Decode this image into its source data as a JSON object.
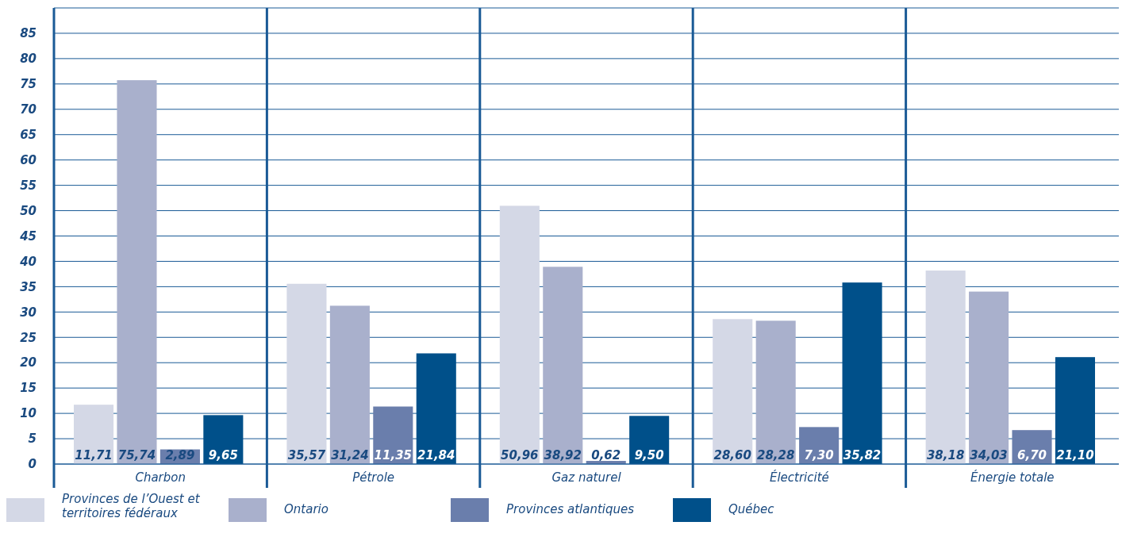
{
  "chart_data": {
    "type": "bar",
    "categories": [
      "Charbon",
      "Pétrole",
      "Gaz naturel",
      "Électricité",
      "Énergie totale"
    ],
    "series": [
      {
        "name": "Provinces de l’Ouest et territoires fédéraux",
        "color": "#d4d8e6",
        "values": [
          11.71,
          35.57,
          50.96,
          28.6,
          38.18
        ],
        "value_labels": [
          "11,71",
          "35,57",
          "50,96",
          "28,60",
          "38,18"
        ]
      },
      {
        "name": "Ontario",
        "color": "#a9b0cc",
        "values": [
          75.74,
          31.24,
          38.92,
          28.28,
          34.03
        ],
        "value_labels": [
          "75,74",
          "31,24",
          "38,92",
          "28,28",
          "34,03"
        ]
      },
      {
        "name": "Provinces atlantiques",
        "color": "#6a7eac",
        "values": [
          2.89,
          11.35,
          0.62,
          7.3,
          6.7
        ],
        "value_labels": [
          "2,89",
          "11,35",
          "0,62",
          "7,30",
          "6,70"
        ]
      },
      {
        "name": "Québec",
        "color": "#00508a",
        "values": [
          9.65,
          21.84,
          9.5,
          35.82,
          21.1
        ],
        "value_labels": [
          "9,65",
          "21,84",
          "9,50",
          "35,82",
          "21,10"
        ]
      }
    ],
    "ylim": [
      0,
      90
    ],
    "yticks": [
      0,
      5,
      10,
      15,
      20,
      25,
      30,
      35,
      40,
      45,
      50,
      55,
      60,
      65,
      70,
      75,
      80,
      85
    ],
    "grid": "y",
    "legend": "bottom"
  }
}
